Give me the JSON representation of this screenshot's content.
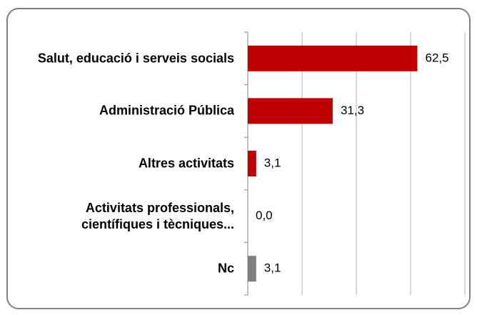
{
  "chart_data": {
    "type": "barh",
    "categories": [
      "Salut, educació i serveis socials",
      "Administració Pública",
      "Altres activitats",
      "Activitats professionals, científiques i tècniques...",
      "Nc"
    ],
    "values": [
      62.5,
      31.3,
      3.1,
      0.0,
      3.1
    ],
    "value_labels": [
      "62,5",
      "31,3",
      "3,1",
      "0,0",
      "3,1"
    ],
    "colors": [
      "#c00000",
      "#c00000",
      "#c00000",
      "#c00000",
      "#7f7f7f"
    ],
    "xlim": [
      0,
      80
    ],
    "xticks": [
      0,
      20,
      40,
      60,
      80
    ],
    "grid": true
  }
}
